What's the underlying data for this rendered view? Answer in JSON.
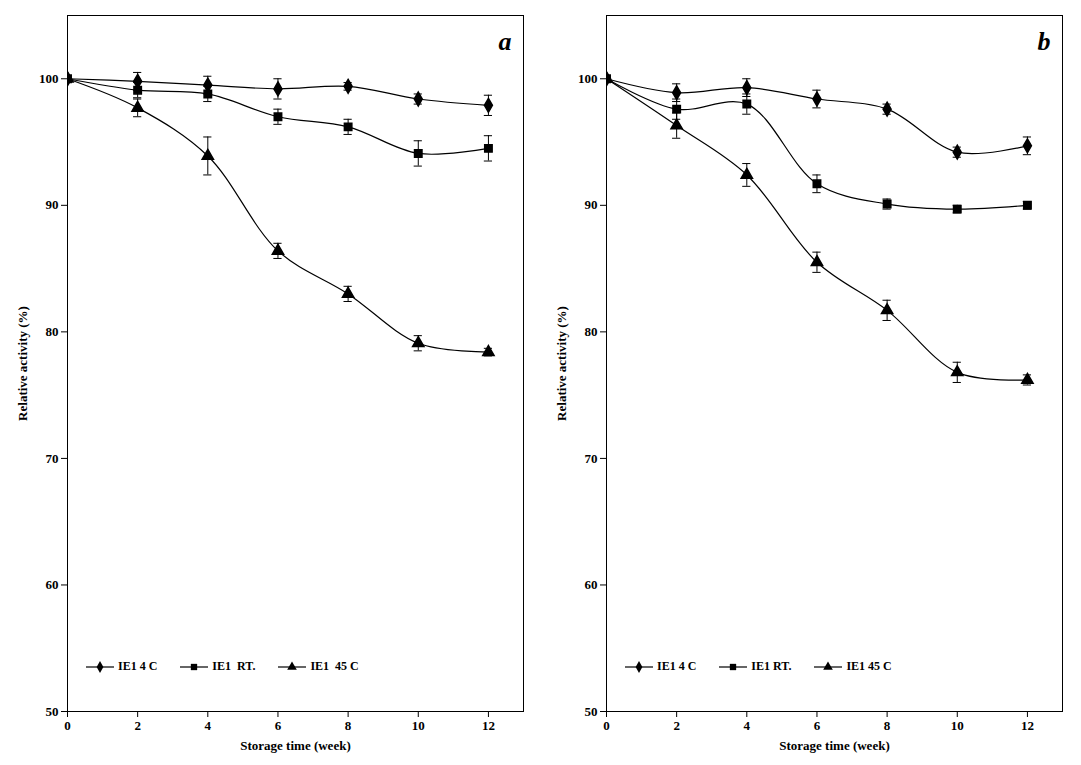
{
  "chart_data": [
    {
      "type": "line",
      "panel": "a",
      "xlabel": "Storage time (week)",
      "ylabel": "Relative activity (%)",
      "x": [
        0,
        2,
        4,
        6,
        8,
        10,
        12
      ],
      "xlim": [
        0,
        13
      ],
      "ylim": [
        50,
        105
      ],
      "xticks": [
        0,
        2,
        4,
        6,
        8,
        10,
        12
      ],
      "yticks": [
        50,
        60,
        70,
        80,
        90,
        100
      ],
      "grid": false,
      "legend": "bottom",
      "series": [
        {
          "name": "IE1 4 C",
          "color": "#000000",
          "marker": "diamond",
          "line_style": "solid",
          "values": [
            100,
            99.8,
            99.5,
            99.2,
            99.4,
            98.4,
            97.9
          ],
          "errors": [
            null,
            0.7,
            0.7,
            0.8,
            0.3,
            0.4,
            0.8
          ]
        },
        {
          "name": "IE1  RT.",
          "color": "#000000",
          "marker": "square",
          "line_style": "solid",
          "values": [
            100,
            99.1,
            98.8,
            97.0,
            96.2,
            94.1,
            94.5
          ],
          "errors": [
            null,
            0.6,
            0.6,
            0.6,
            0.6,
            1.0,
            1.0
          ]
        },
        {
          "name": "IE1  45 C",
          "color": "#000000",
          "marker": "triangle",
          "line_style": "solid",
          "values": [
            100,
            97.7,
            93.9,
            86.4,
            83.0,
            79.1,
            78.4
          ],
          "errors": [
            null,
            0.7,
            1.5,
            0.6,
            0.6,
            0.6,
            0.3
          ]
        }
      ]
    },
    {
      "type": "line",
      "panel": "b",
      "xlabel": "Storage time (week)",
      "ylabel": "Relative activity (%)",
      "x": [
        0,
        2,
        4,
        6,
        8,
        10,
        12
      ],
      "xlim": [
        0,
        13
      ],
      "ylim": [
        50,
        105
      ],
      "xticks": [
        0,
        2,
        4,
        6,
        8,
        10,
        12
      ],
      "yticks": [
        50,
        60,
        70,
        80,
        90,
        100
      ],
      "grid": false,
      "legend": "bottom",
      "series": [
        {
          "name": "IE1 4 C",
          "color": "#000000",
          "marker": "diamond",
          "line_style": "solid",
          "values": [
            100,
            98.9,
            99.3,
            98.4,
            97.6,
            94.2,
            94.7
          ],
          "errors": [
            null,
            0.7,
            0.7,
            0.7,
            0.4,
            0.4,
            0.7
          ]
        },
        {
          "name": "IE1 RT.",
          "color": "#000000",
          "marker": "square",
          "line_style": "solid",
          "values": [
            100,
            97.6,
            98.0,
            91.7,
            90.1,
            89.7,
            90.0
          ],
          "errors": [
            null,
            0.8,
            0.8,
            0.7,
            0.4,
            0.3,
            0.3
          ]
        },
        {
          "name": "IE1 45 C",
          "color": "#000000",
          "marker": "triangle",
          "line_style": "solid",
          "values": [
            100,
            96.3,
            92.4,
            85.5,
            81.7,
            76.8,
            76.2
          ],
          "errors": [
            null,
            1.0,
            0.9,
            0.8,
            0.8,
            0.8,
            0.4
          ]
        }
      ]
    }
  ]
}
